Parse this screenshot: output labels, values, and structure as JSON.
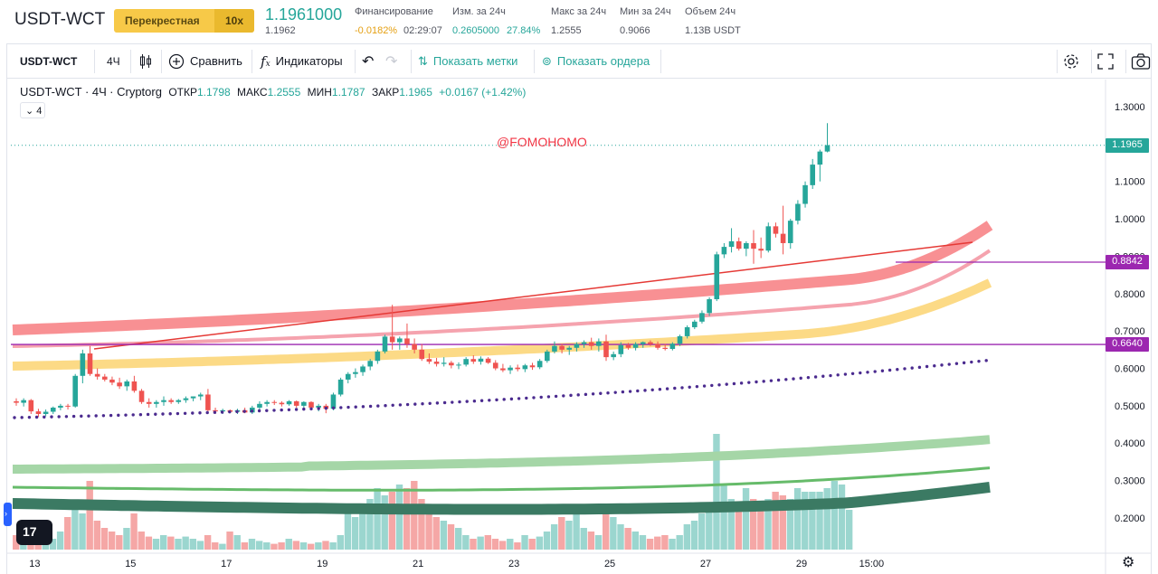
{
  "header": {
    "symbol": "USDT-WCT",
    "mode": "Перекрестная",
    "leverage": "10x",
    "last_price": "1.1961000",
    "mark_price": "1.1962",
    "stats": [
      {
        "label": "Финансирование",
        "value": "-0.0182%",
        "value2": "02:29:07"
      },
      {
        "label": "Изм. за 24ч",
        "value": "0.2605000",
        "value2": "27.84%"
      },
      {
        "label": "Макс за 24ч",
        "value": "1.2555"
      },
      {
        "label": "Мин за 24ч",
        "value": "0.9066"
      },
      {
        "label": "Объем 24ч",
        "value": "1.13B USDT"
      }
    ]
  },
  "toolbar": {
    "symbol": "USDT-WCT",
    "interval": "4Ч",
    "compare": "Сравнить",
    "indicators": "Индикаторы",
    "show_marks": "Показать метки",
    "show_orders": "Показать ордера"
  },
  "legend": {
    "symbol": "USDT-WCT",
    "interval": "4Ч",
    "exchange": "Cryptorg",
    "open_label": "ОТКР",
    "open": "1.1798",
    "high_label": "МАКС",
    "high": "1.2555",
    "low_label": "МИН",
    "low": "1.1787",
    "close_label": "ЗАКР",
    "close": "1.1965",
    "change": "+0.0167 (+1.42%)",
    "collapsed_count": "4"
  },
  "watermark": "@FOMOHOMO",
  "colors": {
    "up": "#26a69a",
    "down": "#ef5350",
    "ma_red": "#f77c80",
    "ma_pink": "#f5a3ae",
    "ma_yellow": "#fcd679",
    "dots": "#4b2b8f",
    "hline": "#9c27b0",
    "vol_ma_light": "#a5d6a7",
    "vol_ma_mid": "#66bb6a",
    "vol_ma_dark": "#3b7a63"
  },
  "chart_data": {
    "type": "candlestick",
    "interval": "4H",
    "y_axis": {
      "min": 0.15,
      "max": 1.35,
      "ticks": [
        0.2,
        0.3,
        0.4,
        0.5,
        0.6,
        0.7,
        0.8,
        0.9,
        1.0,
        1.1,
        1.2,
        1.3
      ]
    },
    "x_axis": {
      "ticks": [
        {
          "label": "13",
          "bar": 2.5
        },
        {
          "label": "15",
          "bar": 15.5
        },
        {
          "label": "17",
          "bar": 28.5
        },
        {
          "label": "19",
          "bar": 41.5
        },
        {
          "label": "21",
          "bar": 54.5
        },
        {
          "label": "23",
          "bar": 67.5
        },
        {
          "label": "25",
          "bar": 80.5
        },
        {
          "label": "27",
          "bar": 93.5
        },
        {
          "label": "29",
          "bar": 106.5
        },
        {
          "label": "15:00",
          "bar": 116.0
        }
      ]
    },
    "current_price": "1.1965",
    "horizontal_levels": [
      {
        "value": 0.8842,
        "label": "0.8842"
      },
      {
        "value": 0.664,
        "label": "0.6640"
      }
    ],
    "candles": [
      [
        0.512,
        0.52,
        0.5,
        0.508
      ],
      [
        0.508,
        0.52,
        0.498,
        0.515
      ],
      [
        0.515,
        0.518,
        0.478,
        0.485
      ],
      [
        0.485,
        0.492,
        0.47,
        0.478
      ],
      [
        0.478,
        0.49,
        0.472,
        0.484
      ],
      [
        0.484,
        0.498,
        0.478,
        0.495
      ],
      [
        0.495,
        0.505,
        0.488,
        0.5
      ],
      [
        0.5,
        0.505,
        0.49,
        0.498
      ],
      [
        0.498,
        0.585,
        0.495,
        0.58
      ],
      [
        0.58,
        0.65,
        0.56,
        0.64
      ],
      [
        0.64,
        0.66,
        0.58,
        0.585
      ],
      [
        0.585,
        0.6,
        0.57,
        0.578
      ],
      [
        0.578,
        0.585,
        0.565,
        0.57
      ],
      [
        0.57,
        0.578,
        0.555,
        0.562
      ],
      [
        0.562,
        0.575,
        0.545,
        0.552
      ],
      [
        0.552,
        0.57,
        0.54,
        0.565
      ],
      [
        0.565,
        0.58,
        0.535,
        0.54
      ],
      [
        0.54,
        0.545,
        0.505,
        0.51
      ],
      [
        0.51,
        0.52,
        0.495,
        0.505
      ],
      [
        0.505,
        0.515,
        0.495,
        0.51
      ],
      [
        0.51,
        0.525,
        0.5,
        0.515
      ],
      [
        0.515,
        0.52,
        0.505,
        0.51
      ],
      [
        0.51,
        0.518,
        0.505,
        0.515
      ],
      [
        0.515,
        0.525,
        0.508,
        0.52
      ],
      [
        0.52,
        0.525,
        0.512,
        0.525
      ],
      [
        0.525,
        0.535,
        0.515,
        0.53
      ],
      [
        0.53,
        0.545,
        0.48,
        0.488
      ],
      [
        0.488,
        0.495,
        0.478,
        0.485
      ],
      [
        0.485,
        0.492,
        0.478,
        0.488
      ],
      [
        0.488,
        0.49,
        0.48,
        0.484
      ],
      [
        0.484,
        0.492,
        0.478,
        0.488
      ],
      [
        0.488,
        0.495,
        0.48,
        0.482
      ],
      [
        0.482,
        0.5,
        0.478,
        0.495
      ],
      [
        0.495,
        0.512,
        0.49,
        0.505
      ],
      [
        0.505,
        0.515,
        0.498,
        0.51
      ],
      [
        0.51,
        0.515,
        0.502,
        0.508
      ],
      [
        0.508,
        0.512,
        0.498,
        0.504
      ],
      [
        0.504,
        0.515,
        0.5,
        0.512
      ],
      [
        0.512,
        0.514,
        0.495,
        0.5
      ],
      [
        0.5,
        0.512,
        0.495,
        0.51
      ],
      [
        0.51,
        0.512,
        0.49,
        0.495
      ],
      [
        0.495,
        0.505,
        0.485,
        0.5
      ],
      [
        0.5,
        0.505,
        0.48,
        0.492
      ],
      [
        0.492,
        0.535,
        0.488,
        0.53
      ],
      [
        0.53,
        0.575,
        0.525,
        0.57
      ],
      [
        0.57,
        0.59,
        0.56,
        0.585
      ],
      [
        0.585,
        0.6,
        0.575,
        0.59
      ],
      [
        0.59,
        0.61,
        0.58,
        0.605
      ],
      [
        0.605,
        0.625,
        0.595,
        0.62
      ],
      [
        0.62,
        0.65,
        0.612,
        0.645
      ],
      [
        0.645,
        0.69,
        0.64,
        0.685
      ],
      [
        0.685,
        0.77,
        0.65,
        0.67
      ],
      [
        0.67,
        0.685,
        0.65,
        0.68
      ],
      [
        0.68,
        0.72,
        0.655,
        0.665
      ],
      [
        0.665,
        0.68,
        0.64,
        0.65
      ],
      [
        0.65,
        0.665,
        0.62,
        0.625
      ],
      [
        0.625,
        0.64,
        0.612,
        0.618
      ],
      [
        0.618,
        0.628,
        0.605,
        0.612
      ],
      [
        0.612,
        0.63,
        0.605,
        0.615
      ],
      [
        0.615,
        0.62,
        0.6,
        0.608
      ],
      [
        0.608,
        0.616,
        0.598,
        0.61
      ],
      [
        0.61,
        0.63,
        0.605,
        0.625
      ],
      [
        0.625,
        0.635,
        0.612,
        0.618
      ],
      [
        0.618,
        0.632,
        0.61,
        0.626
      ],
      [
        0.626,
        0.63,
        0.612,
        0.615
      ],
      [
        0.615,
        0.622,
        0.595,
        0.6
      ],
      [
        0.6,
        0.612,
        0.59,
        0.595
      ],
      [
        0.595,
        0.608,
        0.585,
        0.602
      ],
      [
        0.602,
        0.61,
        0.592,
        0.598
      ],
      [
        0.598,
        0.612,
        0.59,
        0.608
      ],
      [
        0.608,
        0.615,
        0.596,
        0.603
      ],
      [
        0.603,
        0.625,
        0.598,
        0.62
      ],
      [
        0.62,
        0.65,
        0.615,
        0.645
      ],
      [
        0.645,
        0.672,
        0.64,
        0.66
      ],
      [
        0.66,
        0.665,
        0.64,
        0.65
      ],
      [
        0.65,
        0.66,
        0.636,
        0.655
      ],
      [
        0.655,
        0.67,
        0.645,
        0.665
      ],
      [
        0.665,
        0.675,
        0.655,
        0.67
      ],
      [
        0.67,
        0.682,
        0.65,
        0.66
      ],
      [
        0.66,
        0.68,
        0.645,
        0.672
      ],
      [
        0.672,
        0.69,
        0.62,
        0.63
      ],
      [
        0.63,
        0.645,
        0.622,
        0.638
      ],
      [
        0.638,
        0.67,
        0.63,
        0.662
      ],
      [
        0.662,
        0.668,
        0.65,
        0.655
      ],
      [
        0.655,
        0.67,
        0.648,
        0.665
      ],
      [
        0.665,
        0.672,
        0.655,
        0.67
      ],
      [
        0.67,
        0.675,
        0.66,
        0.665
      ],
      [
        0.665,
        0.672,
        0.65,
        0.655
      ],
      [
        0.655,
        0.665,
        0.648,
        0.652
      ],
      [
        0.652,
        0.67,
        0.648,
        0.666
      ],
      [
        0.666,
        0.69,
        0.66,
        0.686
      ],
      [
        0.686,
        0.715,
        0.68,
        0.71
      ],
      [
        0.71,
        0.73,
        0.705,
        0.725
      ],
      [
        0.725,
        0.755,
        0.72,
        0.748
      ],
      [
        0.748,
        0.79,
        0.74,
        0.785
      ],
      [
        0.785,
        0.912,
        0.78,
        0.905
      ],
      [
        0.905,
        0.935,
        0.895,
        0.925
      ],
      [
        0.925,
        0.975,
        0.91,
        0.94
      ],
      [
        0.94,
        0.95,
        0.915,
        0.92
      ],
      [
        0.92,
        0.94,
        0.9,
        0.935
      ],
      [
        0.935,
        0.97,
        0.88,
        0.92
      ],
      [
        0.92,
        0.95,
        0.895,
        0.915
      ],
      [
        0.915,
        0.99,
        0.91,
        0.98
      ],
      [
        0.98,
        0.99,
        0.95,
        0.96
      ],
      [
        0.96,
        1.035,
        0.905,
        0.935
      ],
      [
        0.935,
        1.0,
        0.92,
        0.995
      ],
      [
        0.995,
        1.05,
        0.985,
        1.04
      ],
      [
        1.04,
        1.1,
        1.03,
        1.09
      ],
      [
        1.09,
        1.16,
        1.08,
        1.145
      ],
      [
        1.145,
        1.185,
        1.1,
        1.18
      ],
      [
        1.18,
        1.256,
        1.178,
        1.197
      ]
    ],
    "volume_relative": [
      0.2,
      0.15,
      0.1,
      0.12,
      0.1,
      0.15,
      0.25,
      0.45,
      0.55,
      0.5,
      0.95,
      0.4,
      0.3,
      0.25,
      0.2,
      0.3,
      0.5,
      0.25,
      0.18,
      0.15,
      0.2,
      0.18,
      0.15,
      0.18,
      0.15,
      0.12,
      0.2,
      0.1,
      0.08,
      0.25,
      0.2,
      0.1,
      0.15,
      0.12,
      0.1,
      0.08,
      0.1,
      0.15,
      0.12,
      0.1,
      0.08,
      0.1,
      0.12,
      0.1,
      0.2,
      0.5,
      0.45,
      0.6,
      0.7,
      0.85,
      0.75,
      0.8,
      0.9,
      0.85,
      0.95,
      0.7,
      0.5,
      0.45,
      0.4,
      0.35,
      0.3,
      0.2,
      0.15,
      0.18,
      0.2,
      0.15,
      0.12,
      0.15,
      0.1,
      0.2,
      0.15,
      0.18,
      0.25,
      0.35,
      0.45,
      0.4,
      0.55,
      0.3,
      0.25,
      0.2,
      0.5,
      0.45,
      0.35,
      0.3,
      0.25,
      0.2,
      0.15,
      0.18,
      0.2,
      0.15,
      0.2,
      0.35,
      0.4,
      0.5,
      0.6,
      1.6,
      0.9,
      0.7,
      0.6,
      0.85,
      0.7,
      0.65,
      0.7,
      0.8,
      0.75,
      0.7,
      0.85,
      0.8,
      0.8,
      0.8,
      0.85,
      0.95,
      0.9,
      0.55
    ]
  }
}
